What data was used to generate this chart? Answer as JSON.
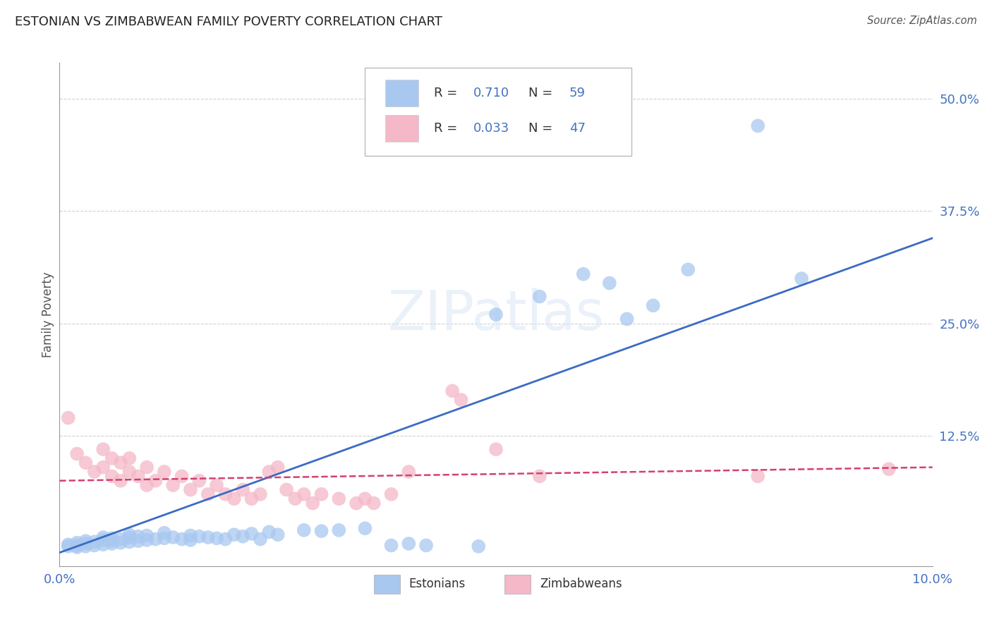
{
  "title": "ESTONIAN VS ZIMBABWEAN FAMILY POVERTY CORRELATION CHART",
  "source": "Source: ZipAtlas.com",
  "ylabel": "Family Poverty",
  "xlim": [
    0.0,
    0.1
  ],
  "ylim": [
    -0.02,
    0.54
  ],
  "estonian_R": 0.71,
  "estonian_N": 59,
  "zimbabwean_R": 0.033,
  "zimbabwean_N": 47,
  "watermark": "ZIPatlas",
  "bg_color": "#ffffff",
  "grid_color": "#cccccc",
  "estonian_color": "#a8c8f0",
  "zimbabwean_color": "#f4b8c8",
  "estonian_line_color": "#3a6bc4",
  "zimbabwean_line_color": "#d44070",
  "estonian_scatter": [
    [
      0.001,
      0.002
    ],
    [
      0.001,
      0.004
    ],
    [
      0.002,
      0.001
    ],
    [
      0.002,
      0.003
    ],
    [
      0.002,
      0.006
    ],
    [
      0.003,
      0.002
    ],
    [
      0.003,
      0.005
    ],
    [
      0.003,
      0.008
    ],
    [
      0.004,
      0.003
    ],
    [
      0.004,
      0.007
    ],
    [
      0.005,
      0.004
    ],
    [
      0.005,
      0.009
    ],
    [
      0.005,
      0.012
    ],
    [
      0.006,
      0.005
    ],
    [
      0.006,
      0.008
    ],
    [
      0.006,
      0.011
    ],
    [
      0.007,
      0.006
    ],
    [
      0.007,
      0.01
    ],
    [
      0.008,
      0.007
    ],
    [
      0.008,
      0.012
    ],
    [
      0.008,
      0.015
    ],
    [
      0.009,
      0.008
    ],
    [
      0.009,
      0.013
    ],
    [
      0.01,
      0.009
    ],
    [
      0.01,
      0.014
    ],
    [
      0.011,
      0.01
    ],
    [
      0.012,
      0.011
    ],
    [
      0.012,
      0.017
    ],
    [
      0.013,
      0.012
    ],
    [
      0.014,
      0.01
    ],
    [
      0.015,
      0.009
    ],
    [
      0.015,
      0.014
    ],
    [
      0.016,
      0.013
    ],
    [
      0.017,
      0.012
    ],
    [
      0.018,
      0.011
    ],
    [
      0.019,
      0.01
    ],
    [
      0.02,
      0.015
    ],
    [
      0.021,
      0.013
    ],
    [
      0.022,
      0.016
    ],
    [
      0.023,
      0.01
    ],
    [
      0.024,
      0.018
    ],
    [
      0.025,
      0.015
    ],
    [
      0.028,
      0.02
    ],
    [
      0.03,
      0.019
    ],
    [
      0.032,
      0.02
    ],
    [
      0.035,
      0.022
    ],
    [
      0.038,
      0.003
    ],
    [
      0.04,
      0.005
    ],
    [
      0.042,
      0.003
    ],
    [
      0.048,
      0.002
    ],
    [
      0.05,
      0.26
    ],
    [
      0.055,
      0.28
    ],
    [
      0.06,
      0.305
    ],
    [
      0.063,
      0.295
    ],
    [
      0.065,
      0.255
    ],
    [
      0.068,
      0.27
    ],
    [
      0.072,
      0.31
    ],
    [
      0.08,
      0.47
    ],
    [
      0.085,
      0.3
    ]
  ],
  "zimbabwean_scatter": [
    [
      0.001,
      0.145
    ],
    [
      0.002,
      0.105
    ],
    [
      0.003,
      0.095
    ],
    [
      0.004,
      0.085
    ],
    [
      0.005,
      0.09
    ],
    [
      0.005,
      0.11
    ],
    [
      0.006,
      0.08
    ],
    [
      0.006,
      0.1
    ],
    [
      0.007,
      0.075
    ],
    [
      0.007,
      0.095
    ],
    [
      0.008,
      0.085
    ],
    [
      0.008,
      0.1
    ],
    [
      0.009,
      0.08
    ],
    [
      0.01,
      0.07
    ],
    [
      0.01,
      0.09
    ],
    [
      0.011,
      0.075
    ],
    [
      0.012,
      0.085
    ],
    [
      0.013,
      0.07
    ],
    [
      0.014,
      0.08
    ],
    [
      0.015,
      0.065
    ],
    [
      0.016,
      0.075
    ],
    [
      0.017,
      0.06
    ],
    [
      0.018,
      0.07
    ],
    [
      0.019,
      0.06
    ],
    [
      0.02,
      0.055
    ],
    [
      0.021,
      0.065
    ],
    [
      0.022,
      0.055
    ],
    [
      0.023,
      0.06
    ],
    [
      0.024,
      0.085
    ],
    [
      0.025,
      0.09
    ],
    [
      0.026,
      0.065
    ],
    [
      0.027,
      0.055
    ],
    [
      0.028,
      0.06
    ],
    [
      0.029,
      0.05
    ],
    [
      0.03,
      0.06
    ],
    [
      0.032,
      0.055
    ],
    [
      0.034,
      0.05
    ],
    [
      0.035,
      0.055
    ],
    [
      0.036,
      0.05
    ],
    [
      0.038,
      0.06
    ],
    [
      0.04,
      0.085
    ],
    [
      0.045,
      0.175
    ],
    [
      0.046,
      0.165
    ],
    [
      0.05,
      0.11
    ],
    [
      0.055,
      0.08
    ],
    [
      0.08,
      0.08
    ],
    [
      0.095,
      0.088
    ]
  ]
}
